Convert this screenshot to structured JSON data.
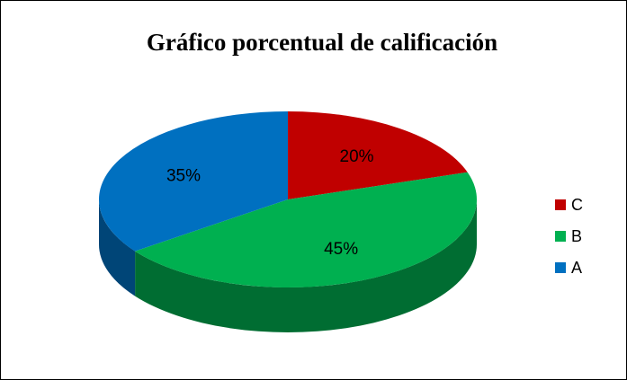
{
  "chart_data": {
    "type": "pie",
    "title": "Gráfico porcentual de calificación",
    "categories": [
      "C",
      "B",
      "A"
    ],
    "values": [
      20,
      45,
      35
    ],
    "value_labels": [
      "20%",
      "45%",
      "35%"
    ],
    "colors": [
      "#c00000",
      "#00b050",
      "#0070c0"
    ],
    "legend": "right"
  }
}
